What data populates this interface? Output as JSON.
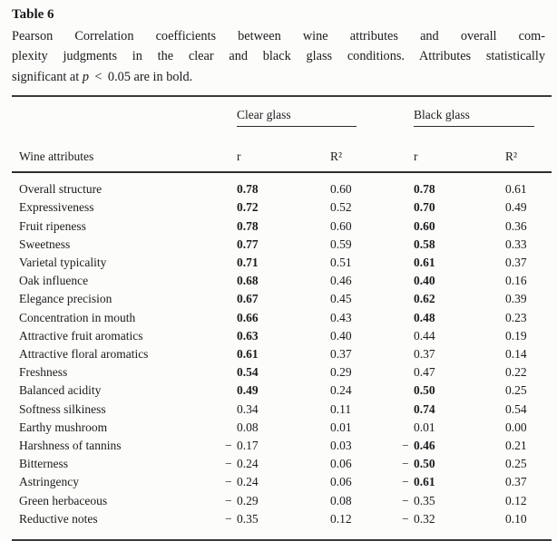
{
  "title": "Table 6",
  "caption": {
    "line1": "Pearson Correlation coefficients between wine attributes and overall com-",
    "line2": "plexity judgments in the clear and black glass conditions. Attributes statistically",
    "line3_pre": "significant at ",
    "line3_italic": "p",
    "line3_post": "  <  0.05 are in bold."
  },
  "table": {
    "attribute_header": "Wine attributes",
    "groups": [
      {
        "label": "Clear glass"
      },
      {
        "label": "Black glass"
      }
    ],
    "subheaders": {
      "r": "r",
      "r2": "R²"
    },
    "rows": [
      {
        "label": "Overall structure",
        "cells": [
          {
            "v": "0.78",
            "b": true
          },
          {
            "v": "0.60",
            "b": false
          },
          {
            "v": "0.78",
            "b": true
          },
          {
            "v": "0.61",
            "b": false
          }
        ]
      },
      {
        "label": "Expressiveness",
        "cells": [
          {
            "v": "0.72",
            "b": true
          },
          {
            "v": "0.52",
            "b": false
          },
          {
            "v": "0.70",
            "b": true
          },
          {
            "v": "0.49",
            "b": false
          }
        ]
      },
      {
        "label": "Fruit ripeness",
        "cells": [
          {
            "v": "0.78",
            "b": true
          },
          {
            "v": "0.60",
            "b": false
          },
          {
            "v": "0.60",
            "b": true
          },
          {
            "v": "0.36",
            "b": false
          }
        ]
      },
      {
        "label": "Sweetness",
        "cells": [
          {
            "v": "0.77",
            "b": true
          },
          {
            "v": "0.59",
            "b": false
          },
          {
            "v": "0.58",
            "b": true
          },
          {
            "v": "0.33",
            "b": false
          }
        ]
      },
      {
        "label": "Varietal typicality",
        "cells": [
          {
            "v": "0.71",
            "b": true
          },
          {
            "v": "0.51",
            "b": false
          },
          {
            "v": "0.61",
            "b": true
          },
          {
            "v": "0.37",
            "b": false
          }
        ]
      },
      {
        "label": "Oak influence",
        "cells": [
          {
            "v": "0.68",
            "b": true
          },
          {
            "v": "0.46",
            "b": false
          },
          {
            "v": "0.40",
            "b": true
          },
          {
            "v": "0.16",
            "b": false
          }
        ]
      },
      {
        "label": "Elegance precision",
        "cells": [
          {
            "v": "0.67",
            "b": true
          },
          {
            "v": "0.45",
            "b": false
          },
          {
            "v": "0.62",
            "b": true
          },
          {
            "v": "0.39",
            "b": false
          }
        ]
      },
      {
        "label": "Concentration in mouth",
        "cells": [
          {
            "v": "0.66",
            "b": true
          },
          {
            "v": "0.43",
            "b": false
          },
          {
            "v": "0.48",
            "b": true
          },
          {
            "v": "0.23",
            "b": false
          }
        ]
      },
      {
        "label": "Attractive fruit aromatics",
        "cells": [
          {
            "v": "0.63",
            "b": true
          },
          {
            "v": "0.40",
            "b": false
          },
          {
            "v": "0.44",
            "b": false
          },
          {
            "v": "0.19",
            "b": false
          }
        ]
      },
      {
        "label": "Attractive floral aromatics",
        "cells": [
          {
            "v": "0.61",
            "b": true
          },
          {
            "v": "0.37",
            "b": false
          },
          {
            "v": "0.37",
            "b": false
          },
          {
            "v": "0.14",
            "b": false
          }
        ]
      },
      {
        "label": "Freshness",
        "cells": [
          {
            "v": "0.54",
            "b": true
          },
          {
            "v": "0.29",
            "b": false
          },
          {
            "v": "0.47",
            "b": false
          },
          {
            "v": "0.22",
            "b": false
          }
        ]
      },
      {
        "label": "Balanced acidity",
        "cells": [
          {
            "v": "0.49",
            "b": true
          },
          {
            "v": "0.24",
            "b": false
          },
          {
            "v": "0.50",
            "b": true
          },
          {
            "v": "0.25",
            "b": false
          }
        ]
      },
      {
        "label": "Softness silkiness",
        "cells": [
          {
            "v": "0.34",
            "b": false
          },
          {
            "v": "0.11",
            "b": false
          },
          {
            "v": "0.74",
            "b": true
          },
          {
            "v": "0.54",
            "b": false
          }
        ]
      },
      {
        "label": "Earthy mushroom",
        "cells": [
          {
            "v": "0.08",
            "b": false
          },
          {
            "v": "0.01",
            "b": false
          },
          {
            "v": "0.01",
            "b": false
          },
          {
            "v": "0.00",
            "b": false
          }
        ]
      },
      {
        "label": "Harshness of tannins",
        "cells": [
          {
            "v": "−0.17",
            "b": false
          },
          {
            "v": "0.03",
            "b": false
          },
          {
            "v": "−0.46",
            "b": true
          },
          {
            "v": "0.21",
            "b": false
          }
        ]
      },
      {
        "label": "Bitterness",
        "cells": [
          {
            "v": "−0.24",
            "b": false
          },
          {
            "v": "0.06",
            "b": false
          },
          {
            "v": "−0.50",
            "b": true
          },
          {
            "v": "0.25",
            "b": false
          }
        ]
      },
      {
        "label": "Astringency",
        "cells": [
          {
            "v": "−0.24",
            "b": false
          },
          {
            "v": "0.06",
            "b": false
          },
          {
            "v": "−0.61",
            "b": true
          },
          {
            "v": "0.37",
            "b": false
          }
        ]
      },
      {
        "label": "Green herbaceous",
        "cells": [
          {
            "v": "−0.29",
            "b": false
          },
          {
            "v": "0.08",
            "b": false
          },
          {
            "v": "−0.35",
            "b": false
          },
          {
            "v": "0.12",
            "b": false
          }
        ]
      },
      {
        "label": "Reductive notes",
        "cells": [
          {
            "v": "−0.35",
            "b": false
          },
          {
            "v": "0.12",
            "b": false
          },
          {
            "v": "−0.32",
            "b": false
          },
          {
            "v": "0.10",
            "b": false
          }
        ]
      }
    ]
  }
}
